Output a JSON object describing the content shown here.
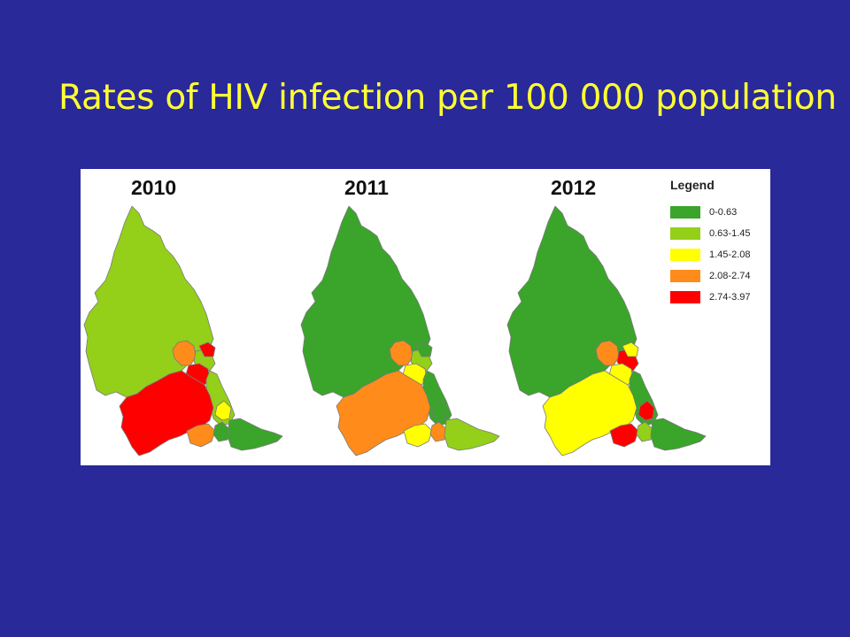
{
  "slide": {
    "title": "Rates of HIV infection per 100 000 population"
  },
  "legend": {
    "title": "Legend",
    "classes": [
      {
        "label": "0-0.63",
        "color": "#3aa52a"
      },
      {
        "label": "0.63-1.45",
        "color": "#94cf1a"
      },
      {
        "label": "1.45-2.08",
        "color": "#ffff00"
      },
      {
        "label": "2.08-2.74",
        "color": "#ff8c1a"
      },
      {
        "label": "2.74-3.97",
        "color": "#ff0000"
      }
    ]
  },
  "maps": [
    {
      "year": "2010",
      "region_class": {
        "north": 1,
        "west_mid": 3,
        "central_mid": 1,
        "mid_small": 4,
        "mid_upper": 4,
        "east_coast": 1,
        "south": 4,
        "se_small_a": 2,
        "se_small_b": 3,
        "se_small_c": 0,
        "se_coast": 0
      }
    },
    {
      "year": "2011",
      "region_class": {
        "north": 0,
        "west_mid": 3,
        "central_mid": 1,
        "mid_small": 2,
        "mid_upper": 0,
        "east_coast": 0,
        "south": 3,
        "se_small_a": 0,
        "se_small_b": 2,
        "se_small_c": 3,
        "se_coast": 1
      }
    },
    {
      "year": "2012",
      "region_class": {
        "north": 0,
        "west_mid": 3,
        "central_mid": 4,
        "mid_small": 2,
        "mid_upper": 2,
        "east_coast": 0,
        "south": 2,
        "se_small_a": 4,
        "se_small_b": 4,
        "se_small_c": 1,
        "se_coast": 0
      }
    }
  ]
}
